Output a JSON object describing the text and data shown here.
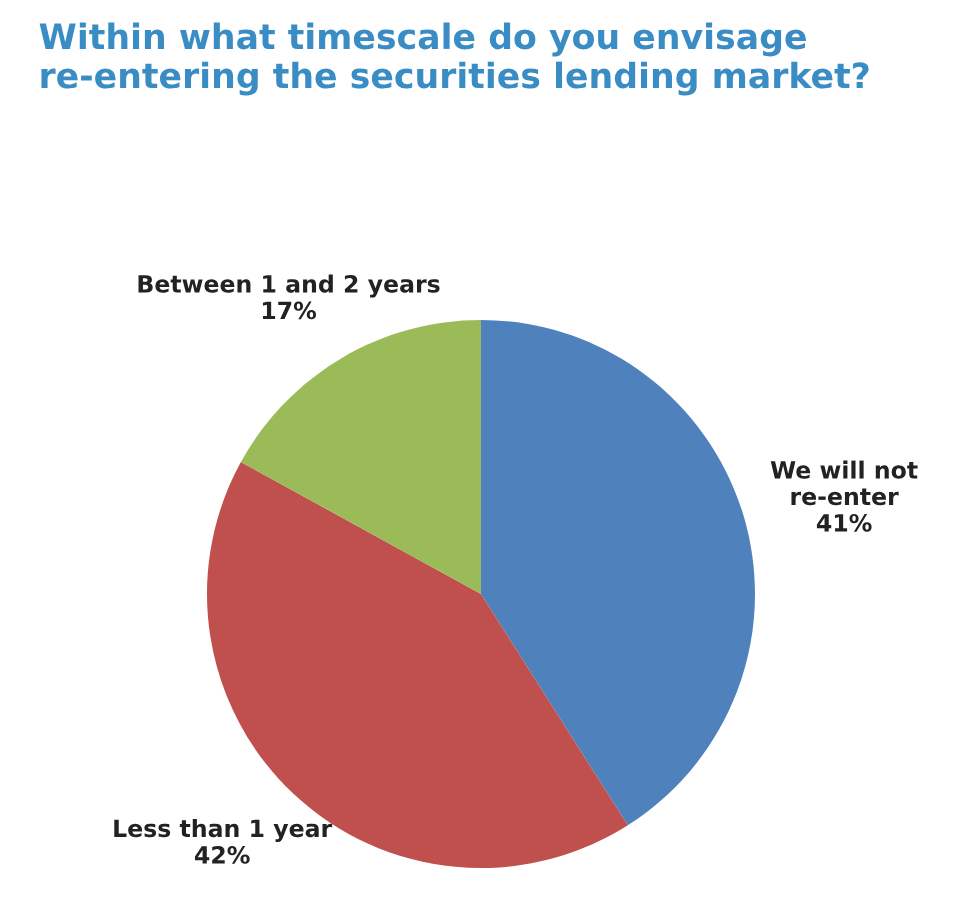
{
  "chart_data": {
    "type": "pie",
    "title": "Within what timescale do you envisage\nre-entering the securities lending market?",
    "categories": [
      "We will not\nre-enter",
      "Less than 1 year",
      "Between 1 and 2 years"
    ],
    "values": [
      41,
      42,
      17
    ],
    "colors": [
      "#4f81bd",
      "#c0504d",
      "#9bbb59"
    ],
    "value_labels": [
      "41%",
      "42%",
      "17%"
    ]
  }
}
